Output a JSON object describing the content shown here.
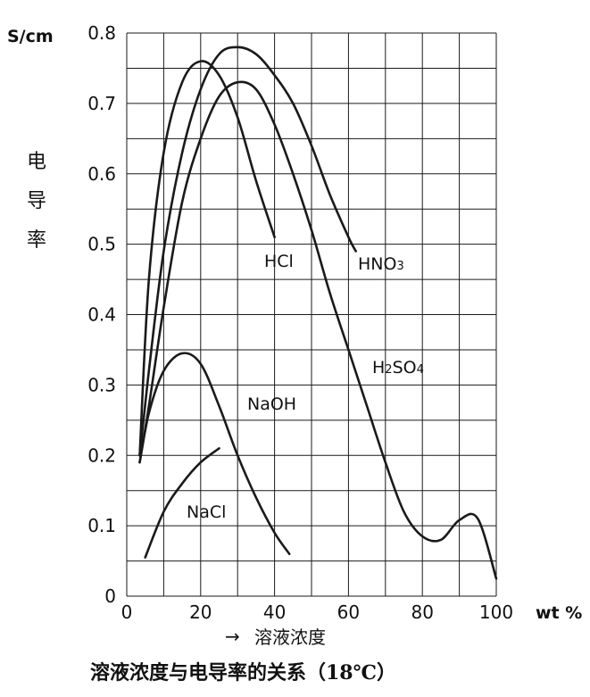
{
  "chart_data": {
    "type": "line",
    "ylabel_unit": "S/cm",
    "xlabel_unit": "wt %",
    "ylabel_chars": [
      "电",
      "导",
      "率"
    ],
    "xlabel": "溶液浓度",
    "xlabel_arrow": "→",
    "caption": "溶液浓度与电导率的关系（18℃）",
    "xlim": [
      0,
      100
    ],
    "ylim": [
      0,
      0.8
    ],
    "xticks": [
      0,
      20,
      40,
      60,
      80,
      100
    ],
    "xtick_labels": [
      "0",
      "20",
      "40",
      "60",
      "80",
      "100"
    ],
    "yticks": [
      0,
      0.1,
      0.2,
      0.3,
      0.4,
      0.5,
      0.6,
      0.7,
      0.8
    ],
    "ytick_labels": [
      "0",
      "0.1",
      "0.2",
      "0.3",
      "0.4",
      "0.5",
      "0.6",
      "0.7",
      "0.8"
    ],
    "x_grid_step": 10,
    "grid": true,
    "series": [
      {
        "name": "HCl",
        "label_parts": [
          [
            "HCl",
            false
          ]
        ],
        "x": [
          3.5,
          6,
          10,
          15,
          20,
          25,
          30,
          35,
          40
        ],
        "y": [
          0.2,
          0.45,
          0.63,
          0.73,
          0.76,
          0.74,
          0.68,
          0.59,
          0.51
        ]
      },
      {
        "name": "HNO3",
        "label_parts": [
          [
            "HNO",
            false
          ],
          [
            "3",
            true
          ]
        ],
        "x": [
          3.5,
          6,
          10,
          15,
          20,
          25,
          30,
          35,
          40,
          45,
          50,
          55,
          60,
          62
        ],
        "y": [
          0.2,
          0.32,
          0.49,
          0.63,
          0.72,
          0.77,
          0.78,
          0.77,
          0.74,
          0.7,
          0.64,
          0.57,
          0.51,
          0.49
        ]
      },
      {
        "name": "H2SO4",
        "label_parts": [
          [
            "H",
            false
          ],
          [
            "2",
            true
          ],
          [
            "SO",
            false
          ],
          [
            "4",
            true
          ]
        ],
        "x": [
          3.5,
          6,
          10,
          15,
          20,
          25,
          30,
          35,
          40,
          45,
          50,
          55,
          60,
          65,
          70,
          75,
          80,
          85,
          90,
          95,
          100
        ],
        "y": [
          0.19,
          0.27,
          0.41,
          0.56,
          0.65,
          0.71,
          0.73,
          0.72,
          0.67,
          0.6,
          0.52,
          0.43,
          0.35,
          0.27,
          0.19,
          0.12,
          0.085,
          0.08,
          0.108,
          0.11,
          0.025
        ]
      },
      {
        "name": "NaOH",
        "label_parts": [
          [
            "NaOH",
            false
          ]
        ],
        "x": [
          3.5,
          6,
          10,
          15,
          20,
          25,
          30,
          35,
          40,
          44
        ],
        "y": [
          0.19,
          0.26,
          0.32,
          0.345,
          0.33,
          0.27,
          0.2,
          0.14,
          0.09,
          0.06
        ]
      },
      {
        "name": "NaCl",
        "label_parts": [
          [
            "NaCl",
            false
          ]
        ],
        "x": [
          5,
          10,
          15,
          20,
          25
        ],
        "y": [
          0.055,
          0.12,
          0.16,
          0.19,
          0.21
        ]
      }
    ]
  }
}
